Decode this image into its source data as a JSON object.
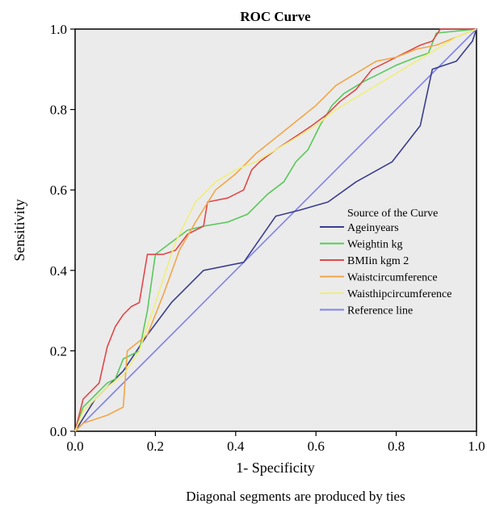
{
  "chart_data": {
    "type": "line",
    "title": "ROC Curve",
    "xlabel": "1- Specificity",
    "ylabel": "Sensitivity",
    "xlim": [
      0,
      1
    ],
    "ylim": [
      0,
      1
    ],
    "xticks": [
      "0.0",
      "0.2",
      "0.4",
      "0.6",
      "0.8",
      "1.0"
    ],
    "yticks": [
      "0.0",
      "0.2",
      "0.4",
      "0.6",
      "0.8",
      "1.0"
    ],
    "grid": false,
    "plot_background": "#ebebeb",
    "legend_title": "Source of the Curve",
    "legend_position": "right",
    "footnote": "Diagonal segments are produced by ties",
    "series": [
      {
        "name": "Ageinyears",
        "color": "#3a3d8f",
        "x": [
          0,
          0.05,
          0.12,
          0.18,
          0.24,
          0.32,
          0.42,
          0.5,
          0.56,
          0.63,
          0.7,
          0.79,
          0.86,
          0.89,
          0.95,
          0.99,
          1.0
        ],
        "y": [
          0,
          0.08,
          0.15,
          0.24,
          0.32,
          0.4,
          0.42,
          0.535,
          0.55,
          0.57,
          0.62,
          0.67,
          0.76,
          0.9,
          0.92,
          0.97,
          1.0
        ]
      },
      {
        "name": "Weightin kg",
        "color": "#5ac85a",
        "x": [
          0,
          0.02,
          0.04,
          0.06,
          0.08,
          0.1,
          0.12,
          0.16,
          0.18,
          0.2,
          0.24,
          0.28,
          0.32,
          0.38,
          0.43,
          0.48,
          0.52,
          0.55,
          0.58,
          0.61,
          0.64,
          0.67,
          0.72,
          0.76,
          0.8,
          0.85,
          0.88,
          0.9,
          1.0
        ],
        "y": [
          0,
          0.06,
          0.08,
          0.1,
          0.12,
          0.13,
          0.18,
          0.2,
          0.3,
          0.44,
          0.47,
          0.5,
          0.51,
          0.52,
          0.54,
          0.59,
          0.62,
          0.67,
          0.7,
          0.76,
          0.81,
          0.84,
          0.87,
          0.89,
          0.91,
          0.93,
          0.94,
          0.99,
          1.0
        ]
      },
      {
        "name": "BMIin kgm 2",
        "color": "#e0484a",
        "x": [
          0,
          0.01,
          0.02,
          0.04,
          0.06,
          0.08,
          0.1,
          0.12,
          0.14,
          0.16,
          0.18,
          0.19,
          0.22,
          0.25,
          0.28,
          0.32,
          0.33,
          0.38,
          0.42,
          0.44,
          0.46,
          0.5,
          0.53,
          0.56,
          0.59,
          0.63,
          0.66,
          0.7,
          0.74,
          0.78,
          0.82,
          0.86,
          0.89,
          0.91,
          0.95,
          1.0
        ],
        "y": [
          0,
          0.04,
          0.08,
          0.1,
          0.12,
          0.21,
          0.26,
          0.29,
          0.31,
          0.32,
          0.44,
          0.44,
          0.44,
          0.45,
          0.49,
          0.51,
          0.57,
          0.58,
          0.6,
          0.65,
          0.67,
          0.7,
          0.72,
          0.74,
          0.76,
          0.79,
          0.82,
          0.85,
          0.9,
          0.92,
          0.94,
          0.96,
          0.97,
          1.0,
          1.0,
          1.0
        ]
      },
      {
        "name": "Waistcircumference",
        "color": "#f2a646",
        "x": [
          0,
          0.02,
          0.05,
          0.08,
          0.12,
          0.13,
          0.18,
          0.22,
          0.26,
          0.3,
          0.35,
          0.4,
          0.45,
          0.5,
          0.55,
          0.6,
          0.65,
          0.7,
          0.75,
          0.8,
          0.85,
          0.9,
          0.95,
          1.0
        ],
        "y": [
          0,
          0.02,
          0.03,
          0.04,
          0.06,
          0.2,
          0.24,
          0.34,
          0.45,
          0.52,
          0.6,
          0.64,
          0.69,
          0.73,
          0.77,
          0.81,
          0.86,
          0.89,
          0.92,
          0.93,
          0.95,
          0.96,
          0.98,
          1.0
        ]
      },
      {
        "name": "Waisthipcircumference",
        "color": "#f0ee7a",
        "x": [
          0,
          0.02,
          0.05,
          0.08,
          0.12,
          0.16,
          0.2,
          0.25,
          0.3,
          0.35,
          0.4,
          0.45,
          0.5,
          0.55,
          0.6,
          0.65,
          0.7,
          0.75,
          0.8,
          0.85,
          0.9,
          0.95,
          1.0
        ],
        "y": [
          0,
          0.05,
          0.08,
          0.11,
          0.14,
          0.2,
          0.32,
          0.47,
          0.57,
          0.62,
          0.65,
          0.67,
          0.7,
          0.73,
          0.76,
          0.8,
          0.83,
          0.86,
          0.89,
          0.92,
          0.95,
          0.98,
          1.0
        ]
      },
      {
        "name": "Reference line",
        "color": "#8080ee",
        "x": [
          0,
          1
        ],
        "y": [
          0,
          1
        ]
      }
    ]
  }
}
